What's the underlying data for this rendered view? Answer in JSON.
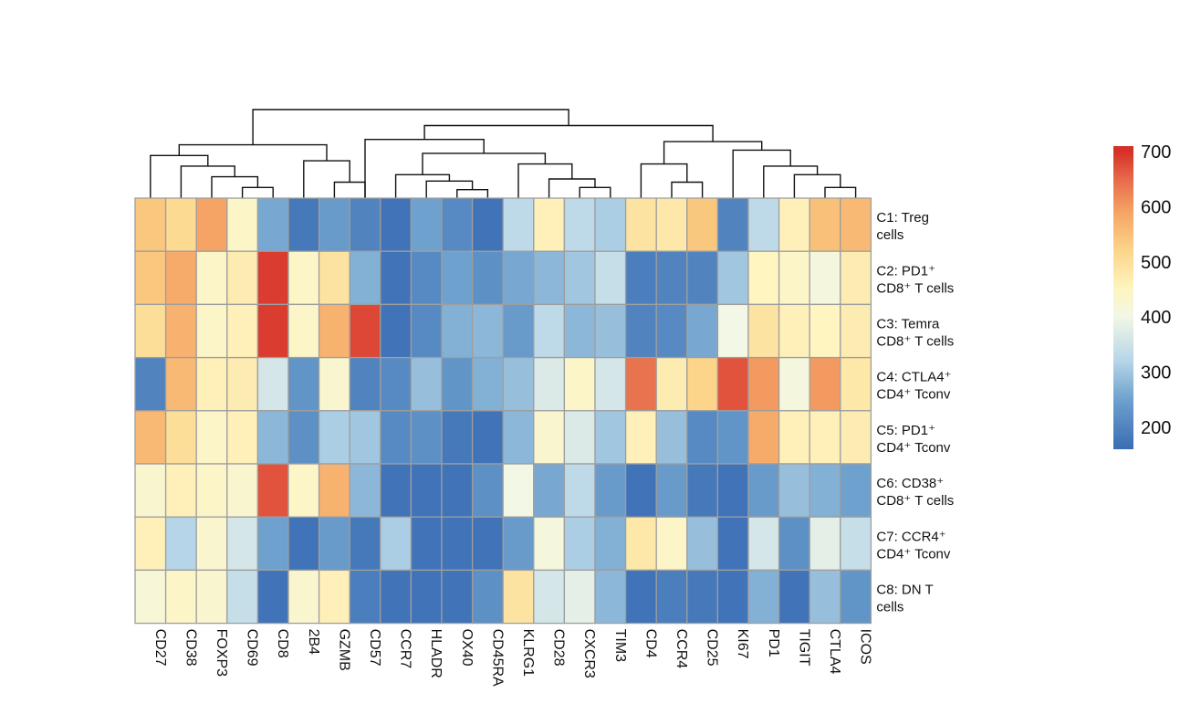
{
  "chart_data": {
    "type": "heatmap",
    "title": "",
    "columns": [
      "CD27",
      "CD38",
      "FOXP3",
      "CD69",
      "CD8",
      "2B4",
      "GZMB",
      "CD57",
      "CCR7",
      "HLADR",
      "OX40",
      "CD45RA",
      "KLRG1",
      "CD28",
      "CXCR3",
      "TIM3",
      "CD4",
      "CCR4",
      "CD25",
      "KI67",
      "PD1",
      "TIGIT",
      "CTLA4",
      "ICOS"
    ],
    "rows": [
      {
        "line1": "C1: Treg",
        "line2": "cells"
      },
      {
        "line1": "C2: PD1⁺",
        "line2": "CD8⁺ T cells"
      },
      {
        "line1": "C3: Temra",
        "line2": "CD8⁺ T cells"
      },
      {
        "line1": "C4: CTLA4⁺",
        "line2": "CD4⁺ Tconv"
      },
      {
        "line1": "C5: PD1⁺",
        "line2": "CD4⁺ Tconv"
      },
      {
        "line1": "C6: CD38⁺",
        "line2": "CD8⁺ T cells"
      },
      {
        "line1": "C7: CCR4⁺",
        "line2": "CD4⁺ Tconv"
      },
      {
        "line1": "C8: DN T",
        "line2": "cells"
      }
    ],
    "values": [
      [
        540,
        510,
        590,
        440,
        260,
        180,
        240,
        200,
        170,
        250,
        210,
        170,
        330,
        460,
        330,
        310,
        490,
        480,
        540,
        200,
        330,
        460,
        550,
        560
      ],
      [
        540,
        580,
        440,
        470,
        690,
        440,
        490,
        270,
        170,
        210,
        250,
        220,
        260,
        280,
        300,
        340,
        190,
        200,
        200,
        300,
        450,
        440,
        410,
        470
      ],
      [
        500,
        570,
        440,
        460,
        690,
        440,
        570,
        680,
        170,
        210,
        270,
        280,
        240,
        330,
        280,
        290,
        200,
        210,
        260,
        400,
        490,
        460,
        450,
        470
      ],
      [
        200,
        560,
        460,
        470,
        360,
        230,
        430,
        200,
        210,
        290,
        230,
        270,
        290,
        370,
        440,
        360,
        640,
        470,
        520,
        670,
        600,
        410,
        600,
        480
      ],
      [
        560,
        500,
        440,
        460,
        280,
        220,
        310,
        300,
        210,
        220,
        180,
        170,
        280,
        430,
        370,
        300,
        460,
        290,
        210,
        230,
        580,
        460,
        460,
        470
      ],
      [
        430,
        460,
        440,
        430,
        670,
        440,
        570,
        280,
        170,
        170,
        170,
        220,
        400,
        260,
        330,
        240,
        170,
        240,
        180,
        170,
        240,
        290,
        270,
        250
      ],
      [
        460,
        320,
        430,
        360,
        250,
        170,
        240,
        180,
        310,
        170,
        170,
        170,
        240,
        410,
        310,
        270,
        480,
        440,
        290,
        170,
        360,
        220,
        380,
        340
      ],
      [
        420,
        440,
        430,
        340,
        170,
        430,
        460,
        190,
        170,
        170,
        170,
        220,
        490,
        360,
        380,
        280,
        170,
        190,
        180,
        170,
        270,
        170,
        290,
        230
      ]
    ],
    "color_scale": {
      "stops": [
        {
          "value": 160,
          "color": "#3a6db4"
        },
        {
          "value": 250,
          "color": "#6ea1cd"
        },
        {
          "value": 320,
          "color": "#b6d5e8"
        },
        {
          "value": 400,
          "color": "#f2f7e6"
        },
        {
          "value": 450,
          "color": "#fef5c0"
        },
        {
          "value": 520,
          "color": "#fcd58a"
        },
        {
          "value": 590,
          "color": "#f5a465"
        },
        {
          "value": 650,
          "color": "#e8694b"
        },
        {
          "value": 700,
          "color": "#d63128"
        }
      ],
      "ticks": [
        700,
        600,
        500,
        400,
        300,
        200
      ],
      "range": [
        160,
        710
      ]
    },
    "dendrogram": {
      "merges": [
        [
          3,
          4
        ],
        [
          2,
          -1
        ],
        [
          1,
          -2
        ],
        [
          6,
          7
        ],
        [
          5,
          -4
        ],
        [
          0,
          -3
        ],
        [
          10,
          11
        ],
        [
          9,
          -7
        ],
        [
          14,
          15
        ],
        [
          13,
          -9
        ],
        [
          12,
          -10
        ],
        [
          8,
          -8
        ],
        [
          -12,
          -11
        ],
        [
          7,
          -13
        ],
        [
          17,
          18
        ],
        [
          16,
          -15
        ],
        [
          22,
          23
        ],
        [
          21,
          -17
        ],
        [
          20,
          -18
        ],
        [
          19,
          -19
        ],
        [
          -16,
          -20
        ],
        [
          -14,
          -21
        ],
        [
          -6,
          -5
        ],
        [
          -23,
          -22
        ]
      ],
      "heights": [
        1,
        2,
        3,
        1.5,
        3.5,
        4,
        0.8,
        1.6,
        1,
        1.8,
        3.2,
        2.2,
        4.2,
        5.5,
        1.5,
        3.2,
        1,
        2.2,
        3,
        4.5,
        5.3,
        6.8,
        5,
        8.3
      ],
      "max_height": 8.3
    }
  }
}
